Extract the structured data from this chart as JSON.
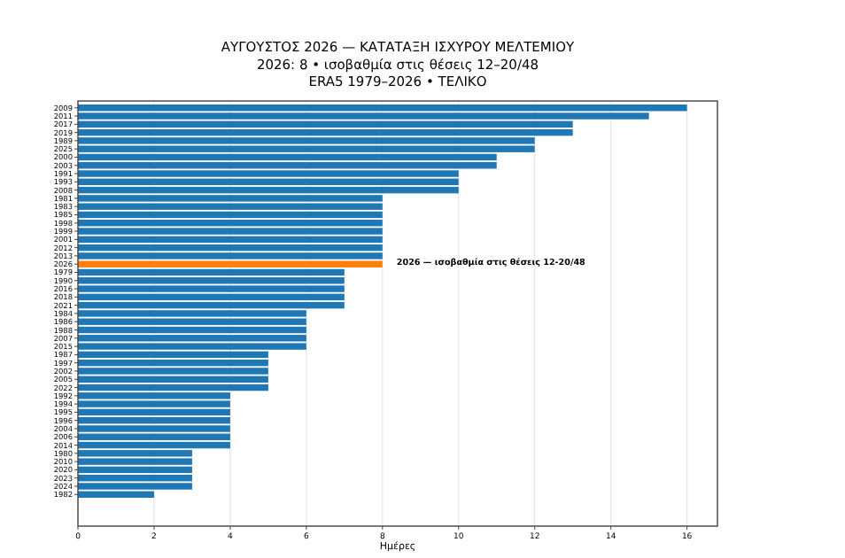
{
  "chart_data": {
    "type": "bar",
    "orientation": "horizontal",
    "title": "ΑΥΓΟΥΣΤΟΣ 2026 — ΚΑΤΑΤΑΞΗ ΙΣΧΥΡΟΥ ΜΕΛΤΕΜΙΟΥ",
    "subtitle": "2026: 8 • ισοβαθμία στις θέσεις 12–20/48\nERA5 1979–2026 • ΤΕΛΙΚΟ",
    "xlabel": "Ημέρες",
    "categories": [
      "2009",
      "2011",
      "2017",
      "2019",
      "1989",
      "2025",
      "2000",
      "2003",
      "1991",
      "1993",
      "2008",
      "1981",
      "1983",
      "1985",
      "1998",
      "1999",
      "2001",
      "2012",
      "2013",
      "2026",
      "1979",
      "1990",
      "2016",
      "2018",
      "2021",
      "1984",
      "1986",
      "1988",
      "2007",
      "2015",
      "1987",
      "1997",
      "2002",
      "2005",
      "2022",
      "1992",
      "1994",
      "1995",
      "1996",
      "2004",
      "2006",
      "2014",
      "1980",
      "2010",
      "2020",
      "2023",
      "2024",
      "1982"
    ],
    "values": [
      16,
      15,
      13,
      13,
      12,
      12,
      11,
      11,
      10,
      10,
      10,
      8,
      8,
      8,
      8,
      8,
      8,
      8,
      8,
      8,
      7,
      7,
      7,
      7,
      7,
      6,
      6,
      6,
      6,
      6,
      5,
      5,
      5,
      5,
      5,
      4,
      4,
      4,
      4,
      4,
      4,
      4,
      3,
      3,
      3,
      3,
      3,
      2
    ],
    "colors": [
      "#1f77b4",
      "#1f77b4",
      "#1f77b4",
      "#1f77b4",
      "#1f77b4",
      "#1f77b4",
      "#1f77b4",
      "#1f77b4",
      "#1f77b4",
      "#1f77b4",
      "#1f77b4",
      "#1f77b4",
      "#1f77b4",
      "#1f77b4",
      "#1f77b4",
      "#1f77b4",
      "#1f77b4",
      "#1f77b4",
      "#1f77b4",
      "#ff7f0e",
      "#1f77b4",
      "#1f77b4",
      "#1f77b4",
      "#1f77b4",
      "#1f77b4",
      "#1f77b4",
      "#1f77b4",
      "#1f77b4",
      "#1f77b4",
      "#1f77b4",
      "#1f77b4",
      "#1f77b4",
      "#1f77b4",
      "#1f77b4",
      "#1f77b4",
      "#1f77b4",
      "#1f77b4",
      "#1f77b4",
      "#1f77b4",
      "#1f77b4",
      "#1f77b4",
      "#1f77b4",
      "#1f77b4",
      "#1f77b4",
      "#1f77b4",
      "#1f77b4",
      "#1f77b4",
      "#1f77b4"
    ],
    "xlim": [
      0,
      16.8
    ],
    "xticks": [
      0,
      2,
      4,
      6,
      8,
      10,
      12,
      14,
      16
    ],
    "grid": "x",
    "annotations": [
      {
        "text": "2026 — ισοβαθμία στις θέσεις 12-20/48",
        "x": 8,
        "y": "2026"
      }
    ]
  }
}
